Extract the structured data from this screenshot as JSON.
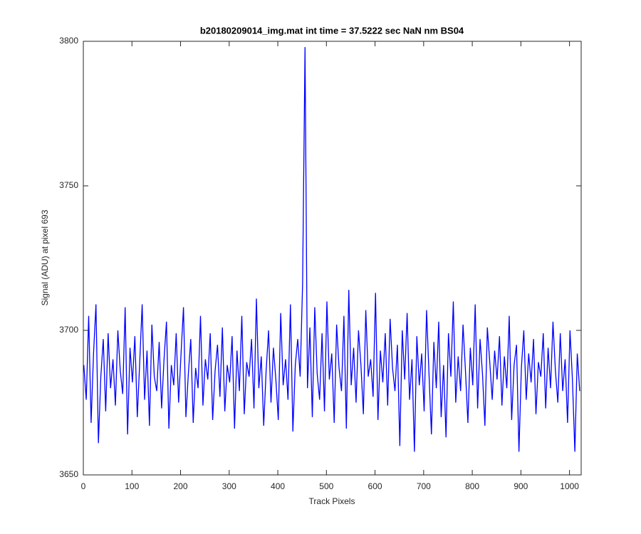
{
  "chart_data": {
    "type": "line",
    "title": "b20180209014_img.mat int time = 37.5222 sec  NaN nm BS04",
    "xlabel": "Track Pixels",
    "ylabel": "Signal (ADU) at pixel 693",
    "color": "#0000ff",
    "xlim": [
      0,
      1024
    ],
    "ylim": [
      3650,
      3800
    ],
    "xticks": [
      0,
      100,
      200,
      300,
      400,
      500,
      600,
      700,
      800,
      900,
      1000
    ],
    "yticks": [
      3650,
      3700,
      3750,
      3800
    ],
    "x": [
      1,
      6,
      11,
      16,
      21,
      26,
      31,
      36,
      41,
      46,
      51,
      56,
      61,
      66,
      71,
      76,
      81,
      86,
      91,
      96,
      101,
      106,
      111,
      116,
      121,
      126,
      131,
      136,
      141,
      146,
      151,
      156,
      161,
      166,
      171,
      176,
      181,
      186,
      191,
      196,
      201,
      206,
      211,
      216,
      221,
      226,
      231,
      236,
      241,
      246,
      251,
      256,
      261,
      266,
      271,
      276,
      281,
      286,
      291,
      296,
      301,
      306,
      311,
      316,
      321,
      326,
      331,
      336,
      341,
      346,
      351,
      356,
      361,
      366,
      371,
      376,
      381,
      386,
      391,
      396,
      401,
      406,
      411,
      416,
      421,
      426,
      431,
      436,
      441,
      446,
      451,
      456,
      461,
      466,
      471,
      476,
      481,
      486,
      491,
      496,
      501,
      506,
      511,
      516,
      521,
      526,
      531,
      536,
      541,
      546,
      551,
      556,
      561,
      566,
      571,
      576,
      581,
      586,
      591,
      596,
      601,
      606,
      611,
      616,
      621,
      626,
      631,
      636,
      641,
      646,
      651,
      656,
      661,
      666,
      671,
      676,
      681,
      686,
      691,
      696,
      701,
      706,
      711,
      716,
      721,
      726,
      731,
      736,
      741,
      746,
      751,
      756,
      761,
      766,
      771,
      776,
      781,
      786,
      791,
      796,
      801,
      806,
      811,
      816,
      821,
      826,
      831,
      836,
      841,
      846,
      851,
      856,
      861,
      866,
      871,
      876,
      881,
      886,
      891,
      896,
      901,
      906,
      911,
      916,
      921,
      926,
      931,
      936,
      941,
      946,
      951,
      956,
      961,
      966,
      971,
      976,
      981,
      986,
      991,
      996,
      1001,
      1006,
      1011,
      1016,
      1021
    ],
    "values": [
      3688,
      3676,
      3705,
      3668,
      3692,
      3709,
      3661,
      3684,
      3697,
      3672,
      3699,
      3680,
      3690,
      3674,
      3700,
      3686,
      3678,
      3708,
      3664,
      3694,
      3682,
      3698,
      3670,
      3689,
      3709,
      3676,
      3693,
      3667,
      3702,
      3684,
      3679,
      3696,
      3673,
      3690,
      3703,
      3666,
      3688,
      3681,
      3699,
      3675,
      3692,
      3708,
      3670,
      3685,
      3697,
      3668,
      3687,
      3680,
      3705,
      3674,
      3690,
      3683,
      3699,
      3669,
      3686,
      3695,
      3677,
      3701,
      3672,
      3688,
      3682,
      3698,
      3666,
      3693,
      3679,
      3705,
      3671,
      3689,
      3684,
      3697,
      3673,
      3711,
      3680,
      3691,
      3667,
      3686,
      3700,
      3675,
      3694,
      3683,
      3669,
      3706,
      3681,
      3690,
      3676,
      3709,
      3665,
      3688,
      3697,
      3684,
      3716,
      3798,
      3680,
      3701,
      3670,
      3708,
      3685,
      3676,
      3699,
      3672,
      3710,
      3683,
      3692,
      3668,
      3702,
      3687,
      3679,
      3705,
      3666,
      3714,
      3681,
      3694,
      3675,
      3700,
      3688,
      3671,
      3707,
      3684,
      3690,
      3677,
      3713,
      3669,
      3693,
      3682,
      3699,
      3674,
      3704,
      3687,
      3679,
      3695,
      3660,
      3700,
      3683,
      3706,
      3676,
      3690,
      3658,
      3698,
      3681,
      3692,
      3672,
      3707,
      3685,
      3664,
      3696,
      3680,
      3703,
      3670,
      3688,
      3663,
      3699,
      3684,
      3710,
      3675,
      3691,
      3679,
      3702,
      3686,
      3668,
      3694,
      3681,
      3709,
      3673,
      3697,
      3685,
      3667,
      3701,
      3689,
      3676,
      3693,
      3683,
      3698,
      3674,
      3691,
      3680,
      3705,
      3669,
      3688,
      3695,
      3658,
      3687,
      3700,
      3676,
      3692,
      3682,
      3697,
      3671,
      3689,
      3684,
      3699,
      3673,
      3694,
      3680,
      3703,
      3686,
      3675,
      3699,
      3679,
      3690,
      3668,
      3700,
      3683,
      3658,
      3692,
      3679
    ]
  }
}
